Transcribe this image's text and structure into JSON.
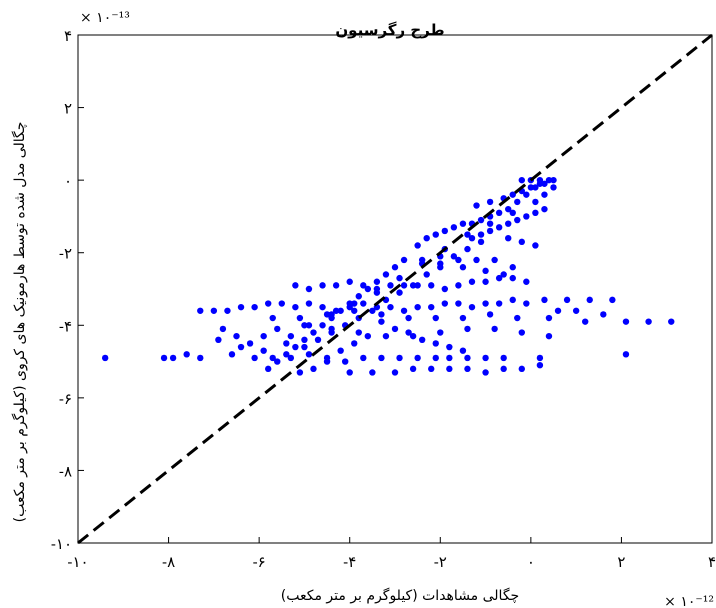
{
  "chart_data": {
    "type": "scatter",
    "title": "طرح رگرسیون",
    "xlabel": "چگالی مشاهدات (کیلوگرم بر متر مکعب)",
    "ylabel": "چگالی مدل شده توسط هارمونیک های کروی (کیلوگرم بر متر مکعب)",
    "x_exponent_label": "× ۱۰⁻¹²",
    "y_exponent_label": "× ۱۰⁻¹³",
    "xlim": [
      -10,
      4
    ],
    "ylim": [
      -10,
      4
    ],
    "x_ticks": [
      "-۱۰",
      "-۸",
      "-۶",
      "-۴",
      "-۲",
      "۰",
      "۲",
      "۴"
    ],
    "y_ticks": [
      "-۱۰",
      "-۸",
      "-۶",
      "-۴",
      "-۲",
      "۰",
      "۲",
      "۴"
    ],
    "grid": false,
    "reference_line": {
      "style": "dashed",
      "color": "#000000",
      "from": [
        -10,
        -10
      ],
      "to": [
        4,
        4
      ]
    },
    "marker_color": "#0000ff",
    "series": [
      {
        "values": [
          [
            -9.4,
            -4.9
          ],
          [
            -8.1,
            -4.9
          ],
          [
            -7.9,
            -4.9
          ],
          [
            -7.6,
            -4.8
          ],
          [
            -7.3,
            -4.9
          ],
          [
            -6.6,
            -4.8
          ],
          [
            -6.1,
            -4.9
          ],
          [
            -5.7,
            -4.9
          ],
          [
            -5.3,
            -4.9
          ],
          [
            -4.9,
            -4.8
          ],
          [
            -4.5,
            -4.9
          ],
          [
            -4.1,
            -5.0
          ],
          [
            -3.7,
            -4.9
          ],
          [
            -3.3,
            -4.9
          ],
          [
            -2.9,
            -4.9
          ],
          [
            -2.5,
            -4.9
          ],
          [
            -2.1,
            -4.9
          ],
          [
            -1.8,
            -4.9
          ],
          [
            -1.4,
            -4.9
          ],
          [
            -1.0,
            -4.9
          ],
          [
            -0.6,
            -4.9
          ],
          [
            0.2,
            -4.9
          ],
          [
            2.1,
            -4.8
          ],
          [
            -7.3,
            -3.6
          ],
          [
            -7.0,
            -3.6
          ],
          [
            -6.7,
            -3.6
          ],
          [
            -6.4,
            -3.5
          ],
          [
            -6.1,
            -3.5
          ],
          [
            -5.8,
            -3.4
          ],
          [
            -5.5,
            -3.4
          ],
          [
            -5.2,
            -3.5
          ],
          [
            -4.9,
            -3.4
          ],
          [
            -4.6,
            -3.5
          ],
          [
            -4.3,
            -3.6
          ],
          [
            -4.0,
            -3.5
          ],
          [
            -3.7,
            -3.4
          ],
          [
            -3.4,
            -3.5
          ],
          [
            -3.1,
            -3.5
          ],
          [
            -2.8,
            -3.6
          ],
          [
            -2.5,
            -3.5
          ],
          [
            -2.2,
            -3.5
          ],
          [
            -1.9,
            -3.4
          ],
          [
            -1.6,
            -3.4
          ],
          [
            -1.3,
            -3.5
          ],
          [
            -1.0,
            -3.4
          ],
          [
            -0.7,
            -3.4
          ],
          [
            -0.4,
            -3.3
          ],
          [
            -0.1,
            -3.4
          ],
          [
            0.3,
            -3.3
          ],
          [
            0.8,
            -3.3
          ],
          [
            1.3,
            -3.3
          ],
          [
            1.8,
            -3.3
          ],
          [
            -5.2,
            -2.9
          ],
          [
            -4.9,
            -3.0
          ],
          [
            -4.6,
            -2.9
          ],
          [
            -4.3,
            -2.9
          ],
          [
            -4.0,
            -2.8
          ],
          [
            -3.7,
            -2.9
          ],
          [
            -3.4,
            -3.0
          ],
          [
            -3.1,
            -2.9
          ],
          [
            -2.8,
            -2.9
          ],
          [
            -2.5,
            -2.9
          ],
          [
            -2.2,
            -2.9
          ],
          [
            -1.9,
            -3.0
          ],
          [
            -1.6,
            -2.9
          ],
          [
            -1.3,
            -2.8
          ],
          [
            -1.0,
            -2.8
          ],
          [
            -0.7,
            -2.7
          ],
          [
            -0.4,
            -2.7
          ],
          [
            -0.1,
            -2.8
          ],
          [
            -0.4,
            -2.4
          ],
          [
            -0.8,
            -2.2
          ],
          [
            -1.2,
            -2.2
          ],
          [
            -1.6,
            -2.2
          ],
          [
            -2.0,
            -2.1
          ],
          [
            -2.4,
            -2.2
          ],
          [
            -2.0,
            -2.3
          ],
          [
            -1.5,
            -2.4
          ],
          [
            -1.0,
            -2.5
          ],
          [
            -0.6,
            -2.6
          ],
          [
            -0.5,
            -1.6
          ],
          [
            -0.2,
            -1.7
          ],
          [
            0.1,
            -1.8
          ],
          [
            -2.5,
            -1.8
          ],
          [
            -2.3,
            -1.6
          ],
          [
            -2.1,
            -1.5
          ],
          [
            -1.9,
            -1.4
          ],
          [
            -1.7,
            -1.3
          ],
          [
            -1.5,
            -1.2
          ],
          [
            -1.3,
            -1.2
          ],
          [
            -1.1,
            -1.1
          ],
          [
            -0.9,
            -1.0
          ],
          [
            -0.7,
            -0.9
          ],
          [
            -0.5,
            -0.8
          ],
          [
            -0.3,
            -0.6
          ],
          [
            -0.1,
            -0.4
          ],
          [
            0.1,
            -0.2
          ],
          [
            0.3,
            -0.1
          ],
          [
            0.5,
            0.0
          ],
          [
            0.5,
            -0.2
          ],
          [
            0.3,
            -0.4
          ],
          [
            0.1,
            -0.6
          ],
          [
            -1.2,
            -0.7
          ],
          [
            -0.9,
            -0.6
          ],
          [
            -0.6,
            -0.5
          ],
          [
            -0.4,
            -0.4
          ],
          [
            -0.2,
            -0.3
          ],
          [
            0.0,
            -0.2
          ],
          [
            0.2,
            -0.1
          ],
          [
            -0.2,
            0.0
          ],
          [
            0.0,
            0.0
          ],
          [
            0.2,
            0.0
          ],
          [
            0.4,
            0.0
          ],
          [
            -1.3,
            -1.6
          ],
          [
            -1.1,
            -1.5
          ],
          [
            -0.9,
            -1.4
          ],
          [
            -0.7,
            -1.3
          ],
          [
            -0.5,
            -1.2
          ],
          [
            -0.3,
            -1.1
          ],
          [
            -0.1,
            -1.0
          ],
          [
            0.1,
            -0.9
          ],
          [
            0.3,
            -0.8
          ],
          [
            -2.8,
            -2.2
          ],
          [
            -3.0,
            -2.4
          ],
          [
            -3.2,
            -2.6
          ],
          [
            -3.4,
            -2.8
          ],
          [
            -3.6,
            -3.0
          ],
          [
            -3.8,
            -3.2
          ],
          [
            -4.0,
            -3.4
          ],
          [
            -4.2,
            -3.6
          ],
          [
            -4.4,
            -3.8
          ],
          [
            -4.6,
            -4.0
          ],
          [
            -4.8,
            -4.2
          ],
          [
            -5.0,
            -4.4
          ],
          [
            -5.2,
            -4.6
          ],
          [
            -5.4,
            -4.8
          ],
          [
            -5.6,
            -5.0
          ],
          [
            -5.8,
            -5.2
          ],
          [
            -3.3,
            -3.9
          ],
          [
            -3.0,
            -4.1
          ],
          [
            -2.7,
            -4.2
          ],
          [
            -2.4,
            -4.4
          ],
          [
            -2.1,
            -4.5
          ],
          [
            -1.8,
            -4.6
          ],
          [
            -1.5,
            -4.7
          ],
          [
            -3.6,
            -4.3
          ],
          [
            -3.9,
            -4.5
          ],
          [
            -4.2,
            -4.7
          ],
          [
            -4.5,
            -5.0
          ],
          [
            -4.8,
            -5.2
          ],
          [
            -5.1,
            -5.3
          ],
          [
            -4.0,
            -5.3
          ],
          [
            -3.5,
            -5.3
          ],
          [
            -3.0,
            -5.3
          ],
          [
            -2.6,
            -5.2
          ],
          [
            -2.2,
            -5.2
          ],
          [
            -1.8,
            -5.2
          ],
          [
            -1.4,
            -5.2
          ],
          [
            -1.0,
            -5.3
          ],
          [
            -0.6,
            -5.2
          ],
          [
            -0.2,
            -5.2
          ],
          [
            0.2,
            -5.1
          ],
          [
            -6.8,
            -4.1
          ],
          [
            -6.5,
            -4.3
          ],
          [
            -6.2,
            -4.5
          ],
          [
            -5.9,
            -4.3
          ],
          [
            -5.6,
            -4.1
          ],
          [
            -5.3,
            -4.3
          ],
          [
            -5.0,
            -4.6
          ],
          [
            -4.7,
            -4.4
          ],
          [
            -4.4,
            -4.2
          ],
          [
            -4.1,
            -4.0
          ],
          [
            -3.8,
            -3.8
          ],
          [
            -3.5,
            -3.6
          ],
          [
            -3.2,
            -3.3
          ],
          [
            -2.9,
            -3.1
          ],
          [
            -2.6,
            -2.9
          ],
          [
            -2.3,
            -2.6
          ],
          [
            -2.0,
            -2.4
          ],
          [
            -1.7,
            -2.1
          ],
          [
            -1.4,
            -1.9
          ],
          [
            -1.1,
            -1.7
          ],
          [
            -6.9,
            -4.4
          ],
          [
            -6.4,
            -4.6
          ],
          [
            -5.9,
            -4.7
          ],
          [
            -5.4,
            -4.5
          ],
          [
            -4.9,
            -4.0
          ],
          [
            -4.4,
            -3.7
          ],
          [
            -3.9,
            -3.4
          ],
          [
            -3.4,
            -3.1
          ],
          [
            -2.9,
            -2.7
          ],
          [
            -2.4,
            -2.3
          ],
          [
            -1.9,
            -1.9
          ],
          [
            -1.4,
            -1.5
          ],
          [
            -0.9,
            -1.2
          ],
          [
            -0.4,
            -0.9
          ],
          [
            -5.7,
            -3.8
          ],
          [
            -5.1,
            -3.8
          ],
          [
            -4.5,
            -3.7
          ],
          [
            -3.9,
            -3.6
          ],
          [
            -3.3,
            -3.7
          ],
          [
            -2.7,
            -3.8
          ],
          [
            -2.1,
            -3.8
          ],
          [
            -1.5,
            -3.8
          ],
          [
            -0.9,
            -3.7
          ],
          [
            -0.3,
            -3.8
          ],
          [
            0.4,
            -3.8
          ],
          [
            1.2,
            -3.9
          ],
          [
            2.6,
            -3.9
          ],
          [
            3.1,
            -3.9
          ],
          [
            2.1,
            -3.9
          ],
          [
            1.6,
            -3.7
          ],
          [
            1.0,
            -3.6
          ],
          [
            0.6,
            -3.6
          ],
          [
            -5.0,
            -4.0
          ],
          [
            -4.4,
            -4.1
          ],
          [
            -3.8,
            -4.2
          ],
          [
            -3.2,
            -4.3
          ],
          [
            -2.6,
            -4.3
          ],
          [
            -2.0,
            -4.2
          ],
          [
            -1.4,
            -4.1
          ],
          [
            -0.8,
            -4.1
          ],
          [
            -0.2,
            -4.2
          ],
          [
            0.4,
            -4.3
          ]
        ]
      }
    ]
  }
}
